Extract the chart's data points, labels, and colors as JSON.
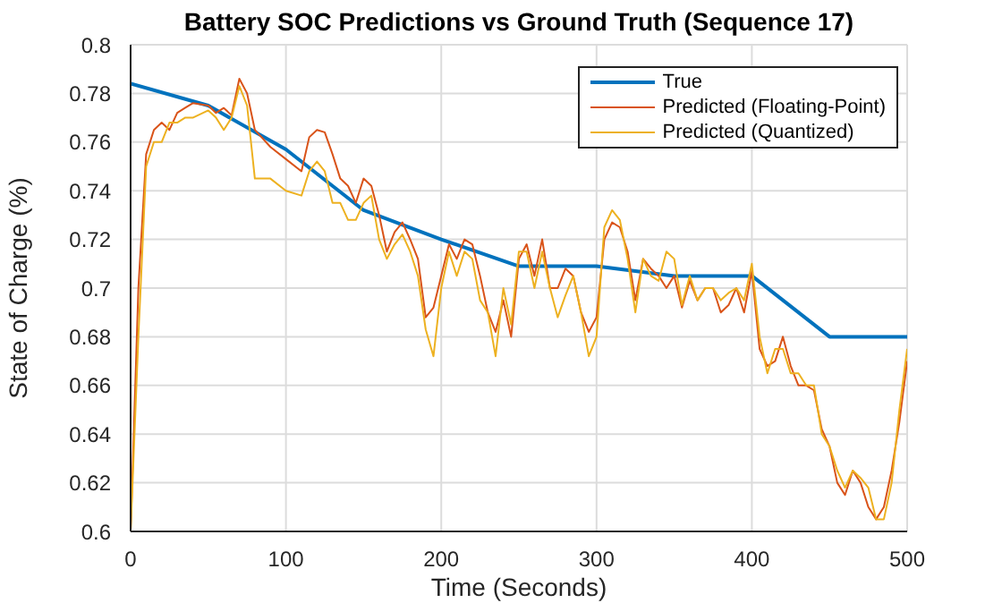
{
  "chart_data": {
    "type": "line",
    "title": "Battery SOC Predictions vs Ground Truth (Sequence 17)",
    "xlabel": "Time (Seconds)",
    "ylabel": "State of Charge (%)",
    "x": [
      0,
      5,
      10,
      15,
      20,
      25,
      30,
      35,
      40,
      50,
      55,
      60,
      65,
      70,
      75,
      80,
      90,
      100,
      110,
      115,
      120,
      125,
      130,
      135,
      140,
      145,
      150,
      155,
      160,
      165,
      170,
      175,
      180,
      185,
      190,
      195,
      200,
      205,
      210,
      215,
      220,
      225,
      230,
      235,
      240,
      245,
      250,
      255,
      260,
      265,
      270,
      275,
      280,
      285,
      290,
      295,
      300,
      305,
      310,
      315,
      320,
      325,
      330,
      335,
      340,
      345,
      350,
      355,
      360,
      365,
      370,
      375,
      380,
      385,
      390,
      395,
      400,
      405,
      410,
      415,
      420,
      425,
      430,
      435,
      440,
      445,
      450,
      455,
      460,
      465,
      470,
      475,
      480,
      485,
      490,
      495,
      500
    ],
    "series": [
      {
        "name": "True",
        "color": "#0072bd",
        "x": [
          0,
          50,
          100,
          150,
          200,
          250,
          300,
          350,
          400,
          450,
          500
        ],
        "values": [
          0.784,
          0.775,
          0.757,
          0.732,
          0.72,
          0.709,
          0.709,
          0.705,
          0.705,
          0.68,
          0.68
        ]
      },
      {
        "name": "Predicted (Floating-Point)",
        "color": "#d95319",
        "values": [
          0.6,
          0.7,
          0.755,
          0.765,
          0.768,
          0.765,
          0.772,
          0.774,
          0.776,
          0.775,
          0.772,
          0.774,
          0.771,
          0.786,
          0.78,
          0.765,
          0.758,
          0.753,
          0.748,
          0.762,
          0.765,
          0.764,
          0.755,
          0.745,
          0.742,
          0.735,
          0.745,
          0.742,
          0.73,
          0.715,
          0.723,
          0.727,
          0.72,
          0.712,
          0.688,
          0.692,
          0.705,
          0.718,
          0.712,
          0.72,
          0.718,
          0.705,
          0.69,
          0.682,
          0.695,
          0.68,
          0.712,
          0.718,
          0.705,
          0.72,
          0.7,
          0.7,
          0.708,
          0.705,
          0.69,
          0.682,
          0.688,
          0.72,
          0.727,
          0.725,
          0.715,
          0.695,
          0.712,
          0.708,
          0.705,
          0.7,
          0.705,
          0.692,
          0.703,
          0.695,
          0.7,
          0.7,
          0.69,
          0.693,
          0.7,
          0.69,
          0.707,
          0.675,
          0.668,
          0.67,
          0.68,
          0.668,
          0.66,
          0.66,
          0.658,
          0.642,
          0.635,
          0.62,
          0.615,
          0.625,
          0.62,
          0.61,
          0.605,
          0.61,
          0.625,
          0.645,
          0.67
        ]
      },
      {
        "name": "Predicted (Quantized)",
        "color": "#edb120",
        "values": [
          0.6,
          0.68,
          0.75,
          0.76,
          0.76,
          0.768,
          0.768,
          0.77,
          0.77,
          0.773,
          0.77,
          0.765,
          0.77,
          0.783,
          0.775,
          0.745,
          0.745,
          0.74,
          0.738,
          0.748,
          0.752,
          0.748,
          0.735,
          0.735,
          0.728,
          0.728,
          0.735,
          0.738,
          0.72,
          0.712,
          0.718,
          0.722,
          0.715,
          0.705,
          0.683,
          0.672,
          0.7,
          0.715,
          0.705,
          0.715,
          0.712,
          0.695,
          0.69,
          0.672,
          0.7,
          0.685,
          0.715,
          0.715,
          0.7,
          0.715,
          0.7,
          0.688,
          0.697,
          0.705,
          0.69,
          0.672,
          0.68,
          0.725,
          0.732,
          0.728,
          0.712,
          0.69,
          0.712,
          0.705,
          0.703,
          0.715,
          0.712,
          0.693,
          0.705,
          0.695,
          0.7,
          0.7,
          0.695,
          0.698,
          0.7,
          0.695,
          0.71,
          0.68,
          0.665,
          0.675,
          0.675,
          0.665,
          0.665,
          0.66,
          0.66,
          0.64,
          0.635,
          0.625,
          0.618,
          0.625,
          0.622,
          0.618,
          0.605,
          0.605,
          0.62,
          0.65,
          0.675
        ]
      }
    ],
    "xlim": [
      0,
      500
    ],
    "xticks": [
      0,
      100,
      200,
      300,
      400,
      500
    ],
    "ylim": [
      0.6,
      0.8
    ],
    "yticks": [
      0.6,
      0.62,
      0.64,
      0.66,
      0.68,
      0.7,
      0.72,
      0.74,
      0.76,
      0.78,
      0.8
    ],
    "grid": true,
    "legend": "top right",
    "marker": "none",
    "line_style": "solid"
  }
}
